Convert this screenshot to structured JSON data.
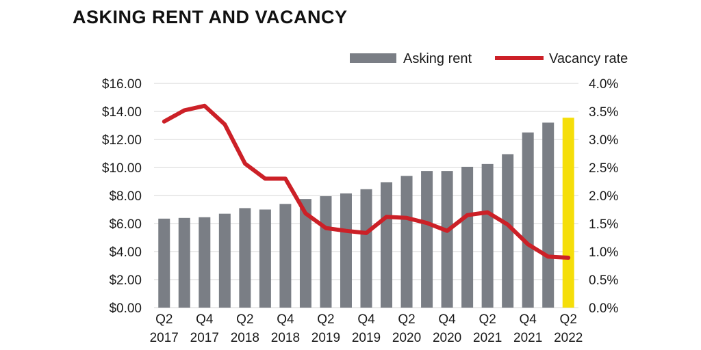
{
  "chart_data": {
    "type": "bar",
    "title": "ASKING RENT AND VACANCY",
    "categories": [
      "Q2 2017",
      "Q3 2017",
      "Q4 2017",
      "Q1 2018",
      "Q2 2018",
      "Q3 2018",
      "Q4 2018",
      "Q1 2019",
      "Q2 2019",
      "Q3 2019",
      "Q4 2019",
      "Q1 2020",
      "Q2 2020",
      "Q3 2020",
      "Q4 2020",
      "Q1 2021",
      "Q2 2021",
      "Q3 2021",
      "Q4 2021",
      "Q1 2022",
      "Q2 2022"
    ],
    "x_tick_labels": [
      {
        "line1": "Q2",
        "line2": "2017"
      },
      {
        "line1": "Q4",
        "line2": "2017"
      },
      {
        "line1": "Q2",
        "line2": "2018"
      },
      {
        "line1": "Q4",
        "line2": "2018"
      },
      {
        "line1": "Q2",
        "line2": "2019"
      },
      {
        "line1": "Q4",
        "line2": "2019"
      },
      {
        "line1": "Q2",
        "line2": "2020"
      },
      {
        "line1": "Q4",
        "line2": "2020"
      },
      {
        "line1": "Q2",
        "line2": "2021"
      },
      {
        "line1": "Q4",
        "line2": "2021"
      },
      {
        "line1": "Q2",
        "line2": "2022"
      }
    ],
    "series": [
      {
        "name": "Asking rent",
        "kind": "bar",
        "axis": "left",
        "color": "#7a7e85",
        "highlight_color": "#f5de0a",
        "highlight_index": 20,
        "values": [
          6.35,
          6.4,
          6.45,
          6.7,
          7.1,
          7.0,
          7.4,
          7.75,
          7.95,
          8.15,
          8.45,
          8.95,
          9.4,
          9.75,
          9.75,
          10.05,
          10.25,
          10.95,
          12.5,
          13.2,
          13.55
        ]
      },
      {
        "name": "Vacancy rate",
        "kind": "line",
        "axis": "right",
        "color": "#cc2027",
        "values": [
          3.32,
          3.52,
          3.6,
          3.27,
          2.57,
          2.3,
          2.3,
          1.68,
          1.42,
          1.37,
          1.33,
          1.62,
          1.6,
          1.51,
          1.37,
          1.65,
          1.7,
          1.48,
          1.13,
          0.91,
          0.89
        ]
      }
    ],
    "y_left": {
      "ylim": [
        0,
        16
      ],
      "ticks": [
        "$0.00",
        "$2.00",
        "$4.00",
        "$6.00",
        "$8.00",
        "$10.00",
        "$12.00",
        "$14.00",
        "$16.00"
      ]
    },
    "y_right": {
      "ylim": [
        0,
        4
      ],
      "ticks": [
        "0.0%",
        "0.5%",
        "1.0%",
        "1.5%",
        "2.0%",
        "2.5%",
        "3.0%",
        "3.5%",
        "4.0%"
      ]
    },
    "grid": true,
    "legend_position": "top-right"
  }
}
